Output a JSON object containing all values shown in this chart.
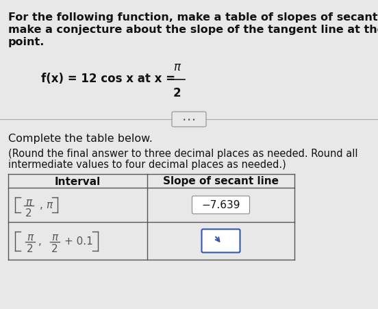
{
  "bg_color": "#e8e8e8",
  "text_color": "#111111",
  "header_text_line1": "For the following function, make a table of slopes of secant lines and",
  "header_text_line2": "make a conjecture about the slope of the tangent line at the indicated",
  "header_text_line3": "point.",
  "func_text": "f(x) = 12 cos x at x =",
  "pi_symbol": "π",
  "denom": "2",
  "complete_text": "Complete the table below.",
  "round_text_line1": "(Round the final answer to three decimal places as needed. Round all",
  "round_text_line2": "intermediate values to four decimal places as needed.)",
  "col1_header": "Interval",
  "col2_header": "Slope of secant line",
  "row1_slope": "−7.639",
  "divider_color": "#aaaaaa",
  "table_border_color": "#555555",
  "slope_box_color": "#cccccc",
  "answer_box_color": "#3355aa"
}
